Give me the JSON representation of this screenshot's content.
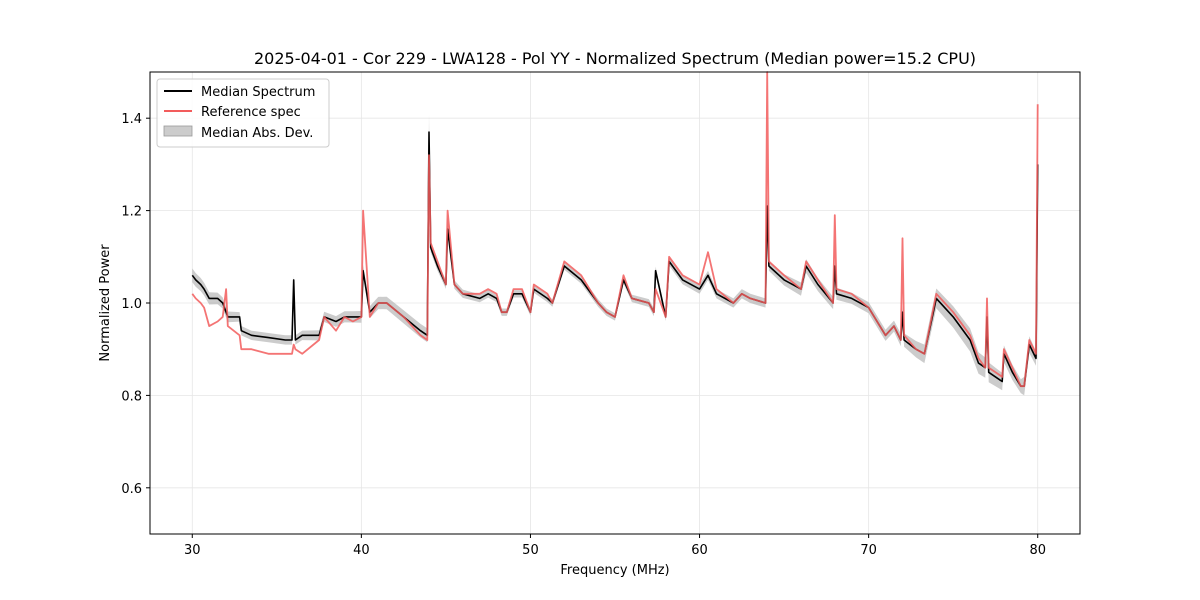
{
  "chart_data": {
    "type": "line",
    "title": "2025-04-01 - Cor 229 - LWA128 - Pol YY - Normalized Spectrum (Median power=15.2 CPU)",
    "xlabel": "Frequency (MHz)",
    "ylabel": "Normalized Power",
    "xlim": [
      27.5,
      82.5
    ],
    "ylim": [
      0.5,
      1.5
    ],
    "xticks": [
      30,
      40,
      50,
      60,
      70,
      80
    ],
    "yticks": [
      0.6,
      0.8,
      1.0,
      1.2,
      1.4
    ],
    "xtick_labels": [
      "30",
      "40",
      "50",
      "60",
      "70",
      "80"
    ],
    "ytick_labels": [
      "0.6",
      "0.8",
      "1.0",
      "1.2",
      "1.4"
    ],
    "grid": true,
    "legend_position": "top-left",
    "legend": [
      "Median Spectrum",
      "Reference spec",
      "Median Abs. Dev."
    ],
    "colors": {
      "median": "#000000",
      "reference": "#f25c5c",
      "mad": "#b0b0b0"
    },
    "series": [
      {
        "name": "Median Spectrum",
        "x": [
          30.0,
          30.2,
          30.5,
          30.7,
          31.0,
          31.5,
          31.8,
          32.0,
          32.1,
          32.8,
          32.9,
          33.5,
          34.5,
          35.5,
          35.9,
          36.0,
          36.1,
          36.5,
          37.5,
          37.8,
          38.5,
          39.0,
          39.5,
          40.0,
          40.1,
          40.5,
          41.0,
          41.5,
          42.5,
          43.5,
          43.9,
          44.0,
          44.1,
          44.5,
          45.0,
          45.1,
          45.5,
          46.0,
          47.0,
          47.5,
          48.0,
          48.3,
          48.6,
          49.0,
          49.5,
          50.0,
          50.2,
          51.0,
          51.3,
          52.0,
          53.0,
          54.0,
          54.5,
          55.0,
          55.5,
          56.0,
          57.0,
          57.3,
          57.4,
          58.0,
          58.2,
          59.0,
          60.0,
          60.5,
          61.0,
          62.0,
          62.5,
          63.0,
          63.9,
          64.0,
          64.1,
          65.0,
          66.0,
          66.3,
          67.0,
          67.9,
          68.0,
          68.1,
          69.0,
          70.0,
          71.0,
          71.5,
          71.9,
          72.0,
          72.1,
          72.8,
          73.3,
          74.0,
          75.0,
          76.0,
          76.5,
          76.9,
          77.0,
          77.1,
          77.5,
          77.9,
          78.0,
          78.5,
          79.0,
          79.2,
          79.5,
          79.9,
          80.0
        ],
        "y": [
          1.06,
          1.05,
          1.04,
          1.03,
          1.01,
          1.01,
          1.0,
          0.98,
          0.97,
          0.97,
          0.94,
          0.93,
          0.925,
          0.92,
          0.92,
          1.05,
          0.92,
          0.93,
          0.93,
          0.97,
          0.96,
          0.97,
          0.97,
          0.97,
          1.07,
          0.98,
          1.0,
          1.0,
          0.97,
          0.94,
          0.93,
          1.37,
          1.12,
          1.08,
          1.04,
          1.16,
          1.04,
          1.02,
          1.01,
          1.02,
          1.01,
          0.98,
          0.98,
          1.02,
          1.02,
          0.98,
          1.03,
          1.01,
          1.0,
          1.08,
          1.05,
          1.0,
          0.98,
          0.97,
          1.05,
          1.01,
          1.0,
          0.98,
          1.07,
          0.97,
          1.09,
          1.05,
          1.03,
          1.06,
          1.02,
          1.0,
          1.02,
          1.01,
          1.0,
          1.21,
          1.08,
          1.05,
          1.03,
          1.08,
          1.04,
          1.0,
          1.08,
          1.02,
          1.01,
          0.99,
          0.93,
          0.95,
          0.92,
          0.98,
          0.92,
          0.9,
          0.89,
          1.01,
          0.97,
          0.92,
          0.87,
          0.86,
          0.97,
          0.85,
          0.84,
          0.83,
          0.89,
          0.85,
          0.82,
          0.82,
          0.91,
          0.88,
          1.3
        ]
      },
      {
        "name": "Reference spec",
        "x": [
          30.0,
          30.2,
          30.5,
          30.7,
          31.0,
          31.5,
          31.8,
          32.0,
          32.1,
          32.8,
          32.9,
          33.5,
          34.5,
          35.5,
          35.9,
          36.0,
          36.1,
          36.5,
          37.5,
          37.8,
          38.5,
          39.0,
          39.5,
          40.0,
          40.1,
          40.5,
          41.0,
          41.5,
          42.5,
          43.5,
          43.9,
          44.0,
          44.1,
          44.5,
          45.0,
          45.1,
          45.5,
          46.0,
          47.0,
          47.5,
          48.0,
          48.3,
          48.6,
          49.0,
          49.5,
          50.0,
          50.2,
          51.0,
          51.3,
          52.0,
          53.0,
          54.0,
          54.5,
          55.0,
          55.5,
          56.0,
          57.0,
          57.3,
          57.4,
          58.0,
          58.2,
          59.0,
          60.0,
          60.5,
          61.0,
          62.0,
          62.5,
          63.0,
          63.9,
          64.0,
          64.1,
          65.0,
          66.0,
          66.3,
          67.0,
          67.9,
          68.0,
          68.1,
          69.0,
          70.0,
          71.0,
          71.5,
          71.9,
          72.0,
          72.1,
          72.8,
          73.3,
          74.0,
          75.0,
          76.0,
          76.5,
          76.9,
          77.0,
          77.1,
          77.5,
          77.9,
          78.0,
          78.5,
          79.0,
          79.2,
          79.5,
          79.9,
          80.0
        ],
        "y": [
          1.02,
          1.01,
          1.0,
          0.99,
          0.95,
          0.96,
          0.97,
          1.03,
          0.95,
          0.93,
          0.9,
          0.9,
          0.89,
          0.89,
          0.89,
          0.91,
          0.9,
          0.89,
          0.92,
          0.97,
          0.94,
          0.97,
          0.96,
          0.97,
          1.2,
          0.97,
          1.0,
          1.0,
          0.97,
          0.93,
          0.92,
          1.32,
          1.13,
          1.09,
          1.04,
          1.2,
          1.04,
          1.02,
          1.02,
          1.03,
          1.02,
          0.98,
          0.98,
          1.03,
          1.03,
          0.98,
          1.04,
          1.02,
          1.0,
          1.09,
          1.06,
          1.0,
          0.98,
          0.97,
          1.06,
          1.01,
          1.0,
          0.98,
          1.03,
          0.97,
          1.1,
          1.06,
          1.04,
          1.11,
          1.03,
          1.0,
          1.02,
          1.01,
          1.0,
          1.5,
          1.09,
          1.06,
          1.03,
          1.09,
          1.05,
          1.0,
          1.19,
          1.03,
          1.02,
          0.99,
          0.93,
          0.95,
          0.92,
          1.14,
          0.93,
          0.9,
          0.89,
          1.02,
          0.98,
          0.93,
          0.88,
          0.86,
          1.01,
          0.86,
          0.85,
          0.84,
          0.9,
          0.86,
          0.82,
          0.82,
          0.92,
          0.89,
          1.43
        ]
      }
    ],
    "mad_band": {
      "name": "Median Abs. Dev.",
      "x": [
        30.0,
        33.0,
        36.0,
        39.0,
        43.9,
        44.1,
        48.0,
        52.0,
        56.0,
        60.0,
        64.1,
        66.3,
        69.0,
        71.5,
        73.3,
        76.0,
        77.5,
        79.0,
        79.2,
        80.0
      ],
      "width": [
        0.015,
        0.01,
        0.01,
        0.012,
        0.015,
        0.01,
        0.008,
        0.008,
        0.008,
        0.01,
        0.01,
        0.015,
        0.012,
        0.012,
        0.02,
        0.025,
        0.02,
        0.015,
        0.02,
        0.015
      ]
    }
  }
}
